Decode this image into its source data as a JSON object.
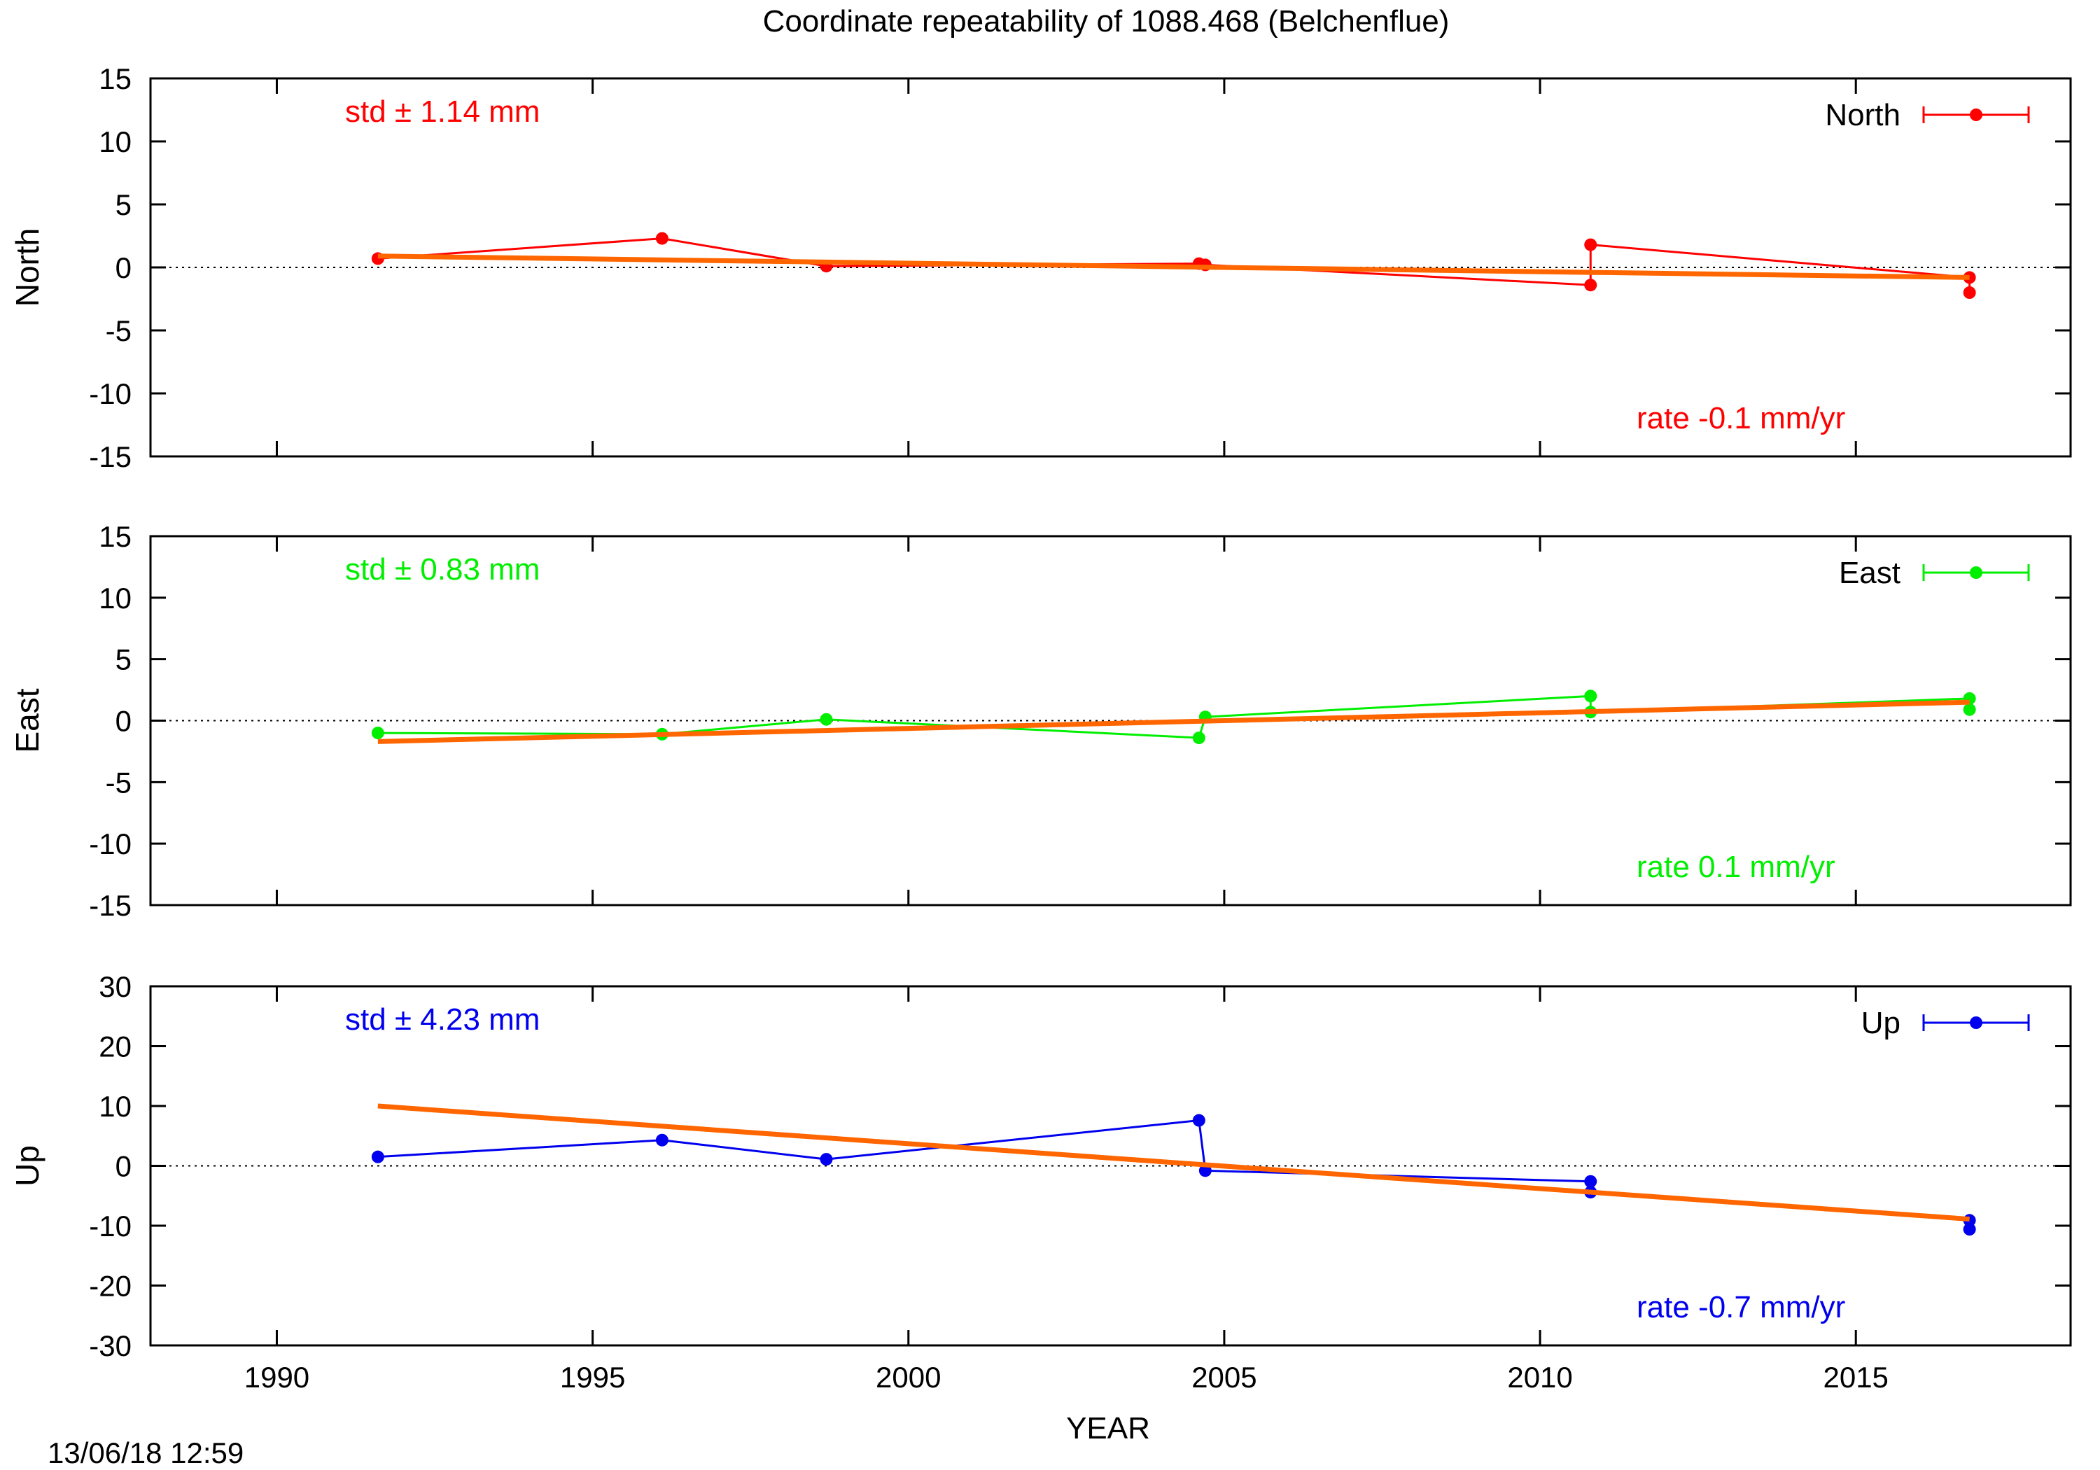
{
  "title": "Coordinate repeatability of 1088.468        (Belchenflue)",
  "timestamp": "13/06/18 12:59",
  "x_axis_label": "YEAR",
  "chart_data": [
    {
      "type": "line",
      "panel": "north",
      "ylabel": "North",
      "ylim": [
        -15,
        15
      ],
      "yticks": [
        15,
        10,
        5,
        0,
        -5,
        -10,
        -15
      ],
      "xlim": [
        1988,
        2018.4
      ],
      "xticks": [
        1990,
        1995,
        2000,
        2005,
        2010,
        2015
      ],
      "tick_labels_x_visible": false,
      "color": "#ff0000",
      "std_text": "std ± 1.14 mm",
      "rate_text": "rate -0.1 mm/yr",
      "legend": "North",
      "legend_position": "top-right",
      "zero_line": "dotted",
      "series": {
        "x": [
          1991.6,
          1996.1,
          1998.7,
          2004.6,
          2004.7,
          2010.8,
          2010.8,
          2016.8,
          2016.8
        ],
        "y": [
          0.7,
          2.3,
          0.1,
          0.3,
          0.2,
          -1.4,
          1.8,
          -0.8,
          -2.0
        ]
      },
      "trend": {
        "x": [
          1991.6,
          2016.8
        ],
        "y": [
          0.9,
          -0.8
        ],
        "color": "#ff6600"
      }
    },
    {
      "type": "line",
      "panel": "east",
      "ylabel": "East",
      "ylim": [
        -15,
        15
      ],
      "yticks": [
        15,
        10,
        5,
        0,
        -5,
        -10,
        -15
      ],
      "xlim": [
        1988,
        2018.4
      ],
      "xticks": [
        1990,
        1995,
        2000,
        2005,
        2010,
        2015
      ],
      "tick_labels_x_visible": false,
      "color": "#00ee00",
      "std_text": "std ± 0.83 mm",
      "rate_text": "rate  0.1 mm/yr",
      "legend": "East",
      "legend_position": "top-right",
      "zero_line": "dotted",
      "series": {
        "x": [
          1991.6,
          1996.1,
          1998.7,
          2004.6,
          2004.7,
          2010.8,
          2010.8,
          2016.8,
          2016.8
        ],
        "y": [
          -1.0,
          -1.1,
          0.1,
          -1.4,
          0.3,
          2.0,
          0.7,
          1.8,
          0.9
        ]
      },
      "trend": {
        "x": [
          1991.6,
          2016.8
        ],
        "y": [
          -1.7,
          1.5
        ],
        "color": "#ff6600"
      }
    },
    {
      "type": "line",
      "panel": "up",
      "ylabel": "Up",
      "ylim": [
        -30,
        30
      ],
      "yticks": [
        30,
        20,
        10,
        0,
        -10,
        -20,
        -30
      ],
      "xlim": [
        1988,
        2018.4
      ],
      "xticks": [
        1990,
        1995,
        2000,
        2005,
        2010,
        2015
      ],
      "tick_labels_x_visible": true,
      "color": "#0000ee",
      "std_text": "std ± 4.23 mm",
      "rate_text": "rate -0.7 mm/yr",
      "legend": "Up",
      "legend_position": "top-right",
      "zero_line": "dotted",
      "series": {
        "x": [
          1991.6,
          1996.1,
          1998.7,
          2004.6,
          2004.7,
          2010.8,
          2010.8,
          2016.8,
          2016.8
        ],
        "y": [
          1.5,
          4.3,
          1.1,
          7.6,
          -0.8,
          -2.6,
          -4.4,
          -9.1,
          -10.6
        ]
      },
      "trend": {
        "x": [
          1991.6,
          2016.8
        ],
        "y": [
          10.0,
          -8.9
        ],
        "color": "#ff6600"
      }
    }
  ]
}
